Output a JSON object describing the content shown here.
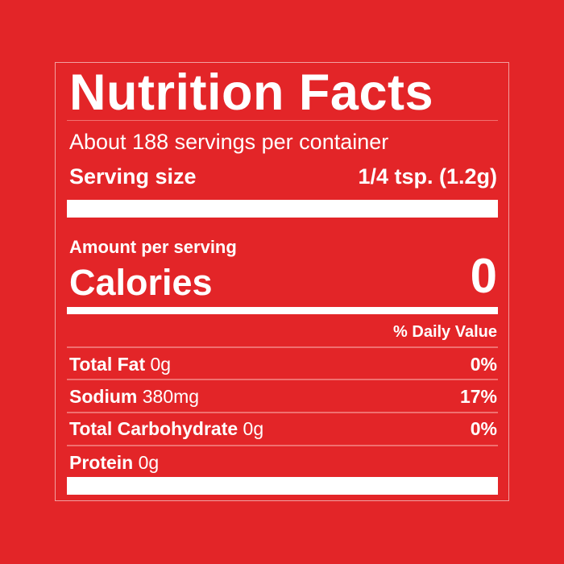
{
  "label": {
    "title": "Nutrition Facts",
    "servings": "About 188 servings per container",
    "serving_size_label": "Serving size",
    "serving_size_value": "1/4 tsp. (1.2g)",
    "amount_per_serving": "Amount per serving",
    "calories_label": "Calories",
    "calories_value": "0",
    "daily_value_header": "% Daily Value",
    "nutrients": [
      {
        "name": "Total Fat",
        "amount": "0g",
        "dv": "0%"
      },
      {
        "name": "Sodium",
        "amount": "380mg",
        "dv": "17%"
      },
      {
        "name": "Total Carbohydrate",
        "amount": "0g",
        "dv": "0%"
      },
      {
        "name": "Protein",
        "amount": "0g",
        "dv": ""
      }
    ]
  },
  "colors": {
    "background": "#e32528",
    "text": "#ffffff"
  }
}
